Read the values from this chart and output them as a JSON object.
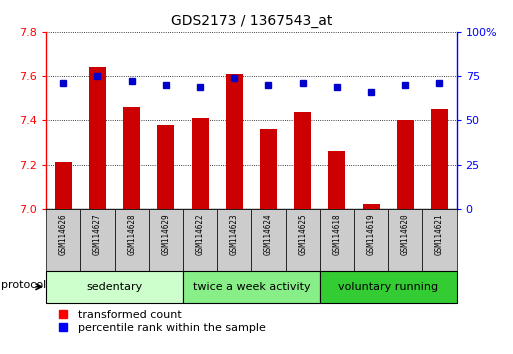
{
  "title": "GDS2173 / 1367543_at",
  "samples": [
    "GSM114626",
    "GSM114627",
    "GSM114628",
    "GSM114629",
    "GSM114622",
    "GSM114623",
    "GSM114624",
    "GSM114625",
    "GSM114618",
    "GSM114619",
    "GSM114620",
    "GSM114621"
  ],
  "transformed_count": [
    7.21,
    7.64,
    7.46,
    7.38,
    7.41,
    7.61,
    7.36,
    7.44,
    7.26,
    7.02,
    7.4,
    7.45
  ],
  "percentile_rank": [
    71,
    75,
    72,
    70,
    69,
    74,
    70,
    71,
    69,
    66,
    70,
    71
  ],
  "ylim_left": [
    7.0,
    7.8
  ],
  "ylim_right": [
    0,
    100
  ],
  "yticks_left": [
    7.0,
    7.2,
    7.4,
    7.6,
    7.8
  ],
  "yticks_right": [
    0,
    25,
    50,
    75,
    100
  ],
  "ytick_labels_right": [
    "0",
    "25",
    "50",
    "75",
    "100%"
  ],
  "bar_color": "#cc0000",
  "dot_color": "#0000cc",
  "bar_bottom": 7.0,
  "groups": [
    {
      "label": "sedentary",
      "start": 0,
      "end": 3,
      "color": "#ccffcc"
    },
    {
      "label": "twice a week activity",
      "start": 4,
      "end": 7,
      "color": "#88ee88"
    },
    {
      "label": "voluntary running",
      "start": 8,
      "end": 11,
      "color": "#33cc33"
    }
  ],
  "sample_bg_color": "#cccccc",
  "bar_width": 0.5,
  "title_fontsize": 10,
  "tick_fontsize": 8,
  "sample_fontsize": 5.5,
  "group_fontsize": 8,
  "legend_red_label": "transformed count",
  "legend_blue_label": "percentile rank within the sample",
  "protocol_label": "protocol"
}
